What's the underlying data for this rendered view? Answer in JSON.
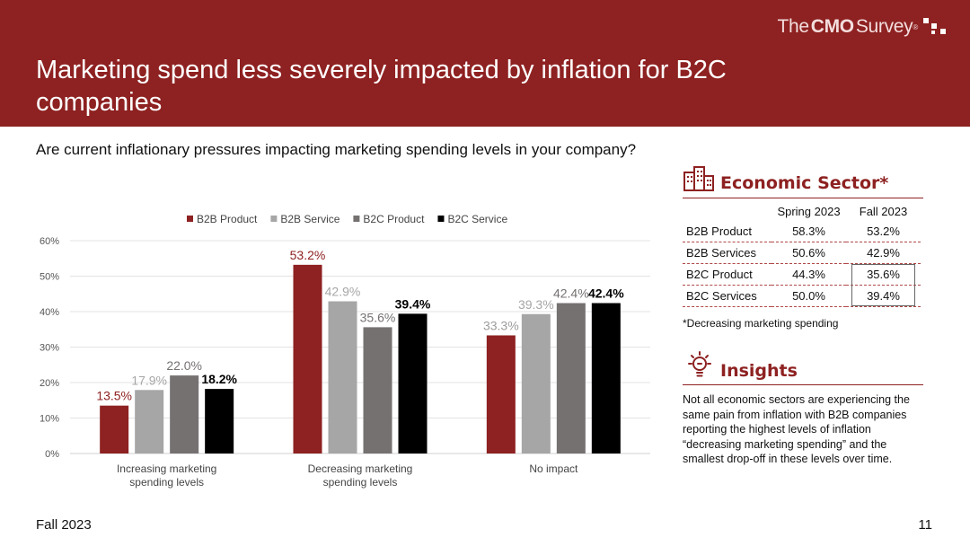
{
  "brand": {
    "prefix": "The",
    "strong": "CMO",
    "suffix": "Survey",
    "registered": "®"
  },
  "title": "Marketing spend less severely impacted by inflation for B2C companies",
  "question": "Are current inflationary pressures impacting marketing spending levels in your company?",
  "colors": {
    "header": "#8e2121",
    "b2b_product": "#8e2121",
    "b2b_service": "#a6a6a6",
    "b2c_product": "#767171",
    "b2c_service": "#000000"
  },
  "chart_data": {
    "type": "bar",
    "title": "",
    "xlabel": "",
    "ylabel": "",
    "ylim": [
      0,
      60
    ],
    "yticks": [
      "0%",
      "10%",
      "20%",
      "30%",
      "40%",
      "50%",
      "60%"
    ],
    "grid": true,
    "legend_position": "top",
    "categories": [
      [
        "Increasing marketing",
        "spending levels"
      ],
      [
        "Decreasing marketing",
        "spending levels"
      ],
      [
        "No impact"
      ]
    ],
    "series": [
      {
        "name": "B2B Product",
        "color": "#8e2121",
        "values": [
          13.5,
          53.2,
          33.3
        ],
        "labels": [
          "13.5%",
          "53.2%",
          "33.3%"
        ],
        "label_colors": [
          "#8e2121",
          "#8e2121",
          "#9c9c9c"
        ],
        "label_bold": [
          false,
          false,
          false
        ]
      },
      {
        "name": "B2B Service",
        "color": "#a6a6a6",
        "values": [
          17.9,
          42.9,
          39.3
        ],
        "labels": [
          "17.9%",
          "42.9%",
          "39.3%"
        ],
        "label_colors": [
          "#a6a6a6",
          "#a6a6a6",
          "#a6a6a6"
        ],
        "label_bold": [
          false,
          false,
          false
        ]
      },
      {
        "name": "B2C Product",
        "color": "#767171",
        "values": [
          22.0,
          35.6,
          42.4
        ],
        "labels": [
          "22.0%",
          "35.6%",
          "42.4%"
        ],
        "label_colors": [
          "#767171",
          "#767171",
          "#767171"
        ],
        "label_bold": [
          false,
          false,
          false
        ]
      },
      {
        "name": "B2C Service",
        "color": "#000000",
        "values": [
          18.2,
          39.4,
          42.4
        ],
        "labels": [
          "18.2%",
          "39.4%",
          "42.4%"
        ],
        "label_colors": [
          "#000000",
          "#000000",
          "#000000"
        ],
        "label_bold": [
          true,
          true,
          true
        ]
      }
    ]
  },
  "sector": {
    "heading": "Economic Sector*",
    "columns": [
      "Spring 2023",
      "Fall 2023"
    ],
    "rows": [
      {
        "name": "B2B Product",
        "spring": "58.3%",
        "fall": "53.2%"
      },
      {
        "name": "B2B Services",
        "spring": "50.6%",
        "fall": "42.9%"
      },
      {
        "name": "B2C Product",
        "spring": "44.3%",
        "fall": "35.6%"
      },
      {
        "name": "B2C Services",
        "spring": "50.0%",
        "fall": "39.4%"
      }
    ],
    "footnote": "*Decreasing marketing spending"
  },
  "insights": {
    "heading": "Insights",
    "text": "Not all economic sectors are experiencing the same pain from inflation with B2B companies reporting the highest levels of inflation “decreasing marketing spending” and the smallest drop-off in these levels over time."
  },
  "footer": {
    "left": "Fall 2023",
    "page": "11"
  }
}
